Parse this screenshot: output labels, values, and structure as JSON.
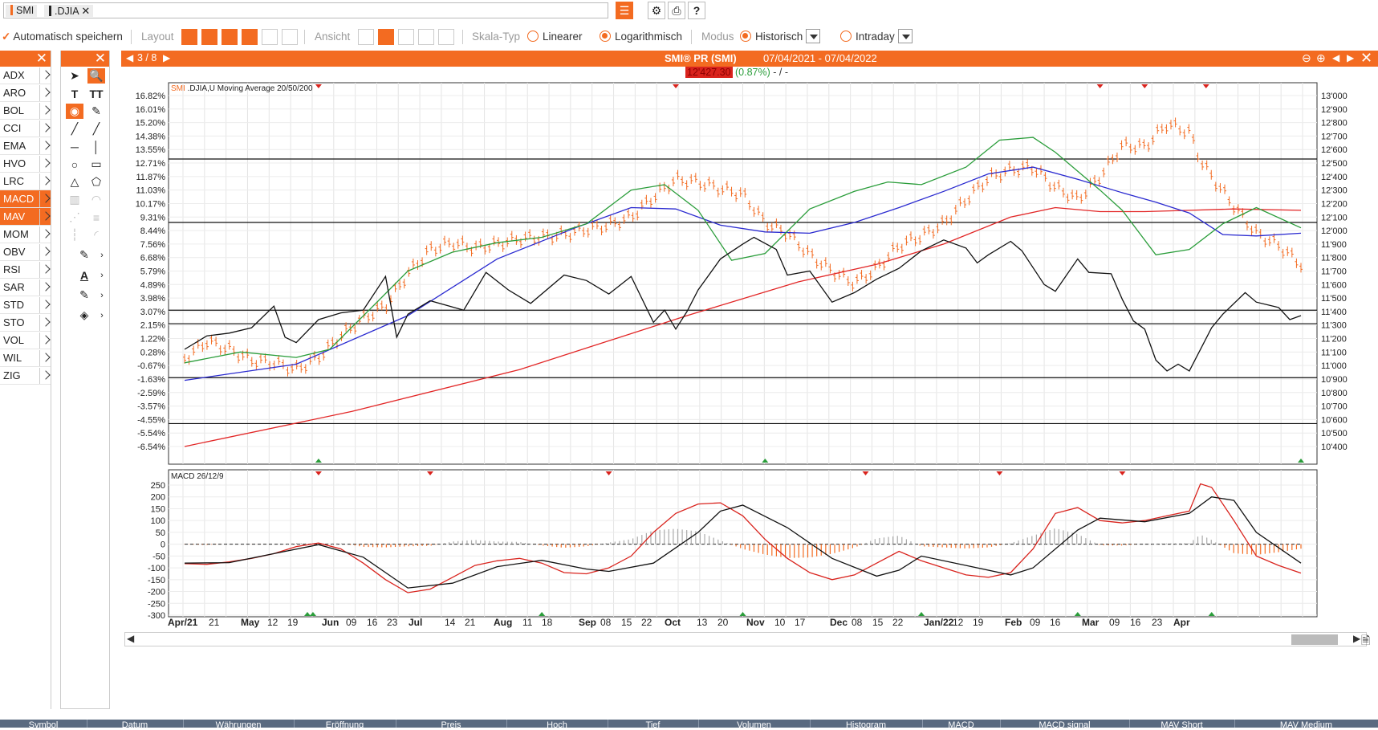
{
  "search": {
    "chips": [
      "SMI",
      ".DJIA"
    ]
  },
  "toolbar": {
    "autosave_label": "Automatisch speichern",
    "layout_label": "Layout",
    "ansicht_label": "Ansicht",
    "skala_label": "Skala-Typ",
    "linear_label": "Linearer",
    "log_label": "Logarithmisch",
    "modus_label": "Modus",
    "hist_label": "Historisch",
    "intraday_label": "Intraday",
    "skala_selected": "Logarithmisch",
    "modus_selected": "Historisch"
  },
  "indicators": {
    "items": [
      "ADX",
      "ARO",
      "BOL",
      "CCI",
      "EMA",
      "HVO",
      "LRC",
      "MACD",
      "MAV",
      "MOM",
      "OBV",
      "RSI",
      "SAR",
      "STD",
      "STO",
      "VOL",
      "WIL",
      "ZIG"
    ],
    "active": [
      "MACD",
      "MAV"
    ]
  },
  "chart": {
    "page": "3 / 8",
    "title": "SMI® PR (SMI)",
    "range": "07/04/2021 - 07/04/2022",
    "last_price": "12'427.30",
    "change": "(0.87%)",
    "change_suffix": "- / -",
    "legend_prefix": "SMI",
    "legend_text": ".DJIA,U Moving Average 20/50/200",
    "macd_label": "MACD 26/12/9",
    "accent": "#f36b21",
    "left_pct_ticks": [
      "16.82%",
      "16.01%",
      "15.20%",
      "14.38%",
      "13.55%",
      "12.71%",
      "11.87%",
      "11.03%",
      "10.17%",
      "9.31%",
      "8.44%",
      "7.56%",
      "6.68%",
      "5.79%",
      "4.89%",
      "3.98%",
      "3.07%",
      "2.15%",
      "1.22%",
      "0.28%",
      "-0.67%",
      "-1.63%",
      "-2.59%",
      "-3.57%",
      "-4.55%",
      "-5.54%",
      "-6.54%"
    ],
    "right_price_ticks": [
      "13'000",
      "12'900",
      "12'800",
      "12'700",
      "12'600",
      "12'500",
      "12'400",
      "12'300",
      "12'200",
      "12'100",
      "12'000",
      "11'900",
      "11'800",
      "11'700",
      "11'600",
      "11'500",
      "11'400",
      "11'300",
      "11'200",
      "11'100",
      "11'000",
      "10'900",
      "10'800",
      "10'700",
      "10'600",
      "10'500",
      "10'400"
    ],
    "macd_ticks": [
      "250",
      "200",
      "150",
      "100",
      "50",
      "0",
      "-50",
      "-100",
      "-150",
      "-200",
      "-250",
      "-300"
    ],
    "x_labels": [
      "Apr/21",
      "21",
      "May",
      "12",
      "19",
      "Jun",
      "09",
      "16",
      "23",
      "Jul",
      "14",
      "21",
      "Aug",
      "11",
      "18",
      "Sep",
      "08",
      "15",
      "22",
      "Oct",
      "13",
      "20",
      "Nov",
      "10",
      "17",
      "Dec",
      "08",
      "15",
      "22",
      "Jan/22",
      "12",
      "19",
      "Feb",
      "09",
      "16",
      "Mar",
      "09",
      "16",
      "23",
      "Apr"
    ]
  },
  "bottom_columns": [
    "Symbol",
    "Datum",
    "Währungen",
    "Eröffnung",
    "Preis",
    "Hoch",
    "Tief",
    "Volumen",
    "Histogram",
    "MACD",
    "MACD signal",
    "MAV Short",
    "MAV Medium"
  ]
}
